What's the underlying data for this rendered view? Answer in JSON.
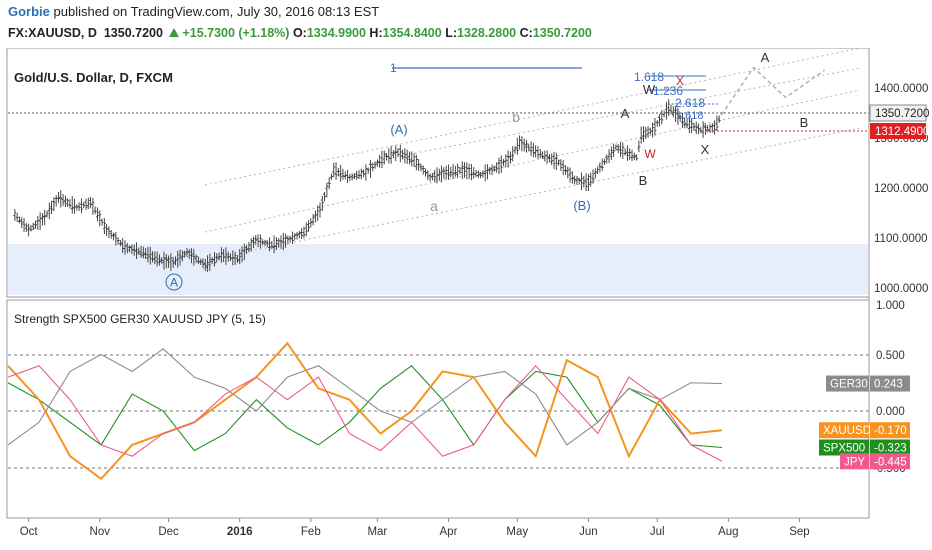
{
  "header": {
    "user": "Gorbie",
    "published_text": " published on TradingView.com, July 30, 2016 08:13 EST",
    "symbol": "FX:XAUUSD, D",
    "last": "1350.7200",
    "change": "+15.7300 (+1.18%)",
    "open_label": "O:",
    "open": "1334.9900",
    "high_label": "H:",
    "high": "1354.8400",
    "low_label": "L:",
    "low": "1328.2800",
    "close_label": "C:",
    "close": "1350.7200"
  },
  "price_pane": {
    "title": "Gold/U.S. Dollar, D, FXCM",
    "axis_ticks": [
      "1400.0000",
      "1300.0000",
      "1200.0000",
      "1100.0000",
      "1000.0000"
    ],
    "last_price_tag": "1350.7200",
    "stop_tag": "1312.4900",
    "wave_labels_blue": [
      "(A)",
      "(B)",
      "A"
    ],
    "wave_labels_gray": [
      "a",
      "b"
    ],
    "wave_labels_black": [
      "A",
      "B",
      "W",
      "X",
      "B",
      "A"
    ],
    "wave_labels_red": [
      "W",
      "X"
    ],
    "fib_labels": [
      "1.618",
      "1.236",
      "2.618",
      "1.618",
      "1"
    ]
  },
  "indicator_pane": {
    "title": "Strength SPX500 GER30 XAUUSD JPY (5, 15)",
    "axis_ticks": [
      "1.000",
      "0.500",
      "0.000",
      "-0.500"
    ],
    "tags": [
      {
        "name": "GER30",
        "value": "0.243",
        "color": "#8c8c8c"
      },
      {
        "name": "XAUUSD",
        "value": "-0.170",
        "color": "#f7931e"
      },
      {
        "name": "SPX500",
        "value": "-0.323",
        "color": "#1f8f1f"
      },
      {
        "name": "JPY",
        "value": "-0.445",
        "color": "#ef5a8c"
      }
    ]
  },
  "time_axis": [
    "Oct",
    "Nov",
    "Dec",
    "2016",
    "Feb",
    "Mar",
    "Apr",
    "May",
    "Jun",
    "Jul",
    "Aug",
    "Sep"
  ],
  "chart_data": {
    "type": "line",
    "title": "Gold/U.S. Dollar, D, FXCM",
    "price_axis_range": [
      1000,
      1420
    ],
    "price_path": [
      [
        "2015-09-25",
        1150
      ],
      [
        "2015-10-01",
        1120
      ],
      [
        "2015-10-08",
        1145
      ],
      [
        "2015-10-14",
        1185
      ],
      [
        "2015-10-22",
        1165
      ],
      [
        "2015-10-28",
        1175
      ],
      [
        "2015-11-04",
        1120
      ],
      [
        "2015-11-12",
        1085
      ],
      [
        "2015-11-20",
        1075
      ],
      [
        "2015-11-27",
        1060
      ],
      [
        "2015-12-03",
        1055
      ],
      [
        "2015-12-09",
        1075
      ],
      [
        "2015-12-17",
        1050
      ],
      [
        "2015-12-24",
        1070
      ],
      [
        "2015-12-31",
        1062
      ],
      [
        "2016-01-08",
        1100
      ],
      [
        "2016-01-15",
        1090
      ],
      [
        "2016-01-22",
        1100
      ],
      [
        "2016-01-29",
        1115
      ],
      [
        "2016-02-05",
        1160
      ],
      [
        "2016-02-11",
        1240
      ],
      [
        "2016-02-18",
        1225
      ],
      [
        "2016-02-25",
        1235
      ],
      [
        "2016-03-04",
        1265
      ],
      [
        "2016-03-10",
        1275
      ],
      [
        "2016-03-17",
        1260
      ],
      [
        "2016-03-24",
        1225
      ],
      [
        "2016-03-31",
        1235
      ],
      [
        "2016-04-08",
        1240
      ],
      [
        "2016-04-15",
        1230
      ],
      [
        "2016-04-22",
        1245
      ],
      [
        "2016-04-28",
        1265
      ],
      [
        "2016-05-02",
        1295
      ],
      [
        "2016-05-06",
        1285
      ],
      [
        "2016-05-12",
        1270
      ],
      [
        "2016-05-19",
        1255
      ],
      [
        "2016-05-26",
        1220
      ],
      [
        "2016-06-01",
        1215
      ],
      [
        "2016-06-06",
        1245
      ],
      [
        "2016-06-13",
        1285
      ],
      [
        "2016-06-22",
        1265
      ],
      [
        "2016-06-24",
        1310
      ],
      [
        "2016-06-29",
        1320
      ],
      [
        "2016-07-06",
        1365
      ],
      [
        "2016-07-13",
        1335
      ],
      [
        "2016-07-20",
        1320
      ],
      [
        "2016-07-26",
        1325
      ],
      [
        "2016-07-29",
        1350
      ]
    ],
    "projection": [
      [
        "2016-07-29",
        1350
      ],
      [
        "2016-08-12",
        1445
      ],
      [
        "2016-08-26",
        1385
      ],
      [
        "2016-09-12",
        1440
      ]
    ],
    "strength_axis_range": [
      -1.0,
      1.0
    ],
    "series": [
      {
        "name": "SPX500",
        "color": "#1f8f1f",
        "values": [
          0.25,
          0.1,
          -0.1,
          -0.3,
          0.15,
          0.0,
          -0.35,
          -0.2,
          0.1,
          -0.15,
          -0.3,
          -0.1,
          0.2,
          0.4,
          0.1,
          -0.3,
          0.1,
          0.35,
          0.3,
          -0.1,
          0.2,
          0.05,
          -0.3,
          -0.323
        ]
      },
      {
        "name": "GER30",
        "color": "#8c8c8c",
        "values": [
          -0.3,
          -0.1,
          0.35,
          0.5,
          0.35,
          0.55,
          0.3,
          0.2,
          0.0,
          0.3,
          0.4,
          0.2,
          0.0,
          -0.1,
          0.1,
          0.3,
          0.35,
          0.15,
          -0.3,
          -0.1,
          0.2,
          0.1,
          0.25,
          0.243
        ]
      },
      {
        "name": "XAUUSD",
        "color": "#f7931e",
        "values": [
          0.4,
          0.1,
          -0.4,
          -0.6,
          -0.3,
          -0.2,
          -0.1,
          0.1,
          0.3,
          0.6,
          0.2,
          0.1,
          -0.2,
          0.0,
          0.35,
          0.3,
          -0.1,
          -0.4,
          0.45,
          0.3,
          -0.4,
          0.1,
          -0.2,
          -0.17
        ]
      },
      {
        "name": "JPY",
        "color": "#ef5a8c",
        "values": [
          0.3,
          0.4,
          0.1,
          -0.3,
          -0.4,
          -0.2,
          -0.1,
          0.15,
          0.3,
          0.1,
          0.3,
          -0.2,
          -0.35,
          -0.1,
          -0.4,
          -0.3,
          0.1,
          0.4,
          0.1,
          -0.2,
          0.3,
          0.1,
          -0.3,
          -0.445
        ]
      }
    ]
  }
}
